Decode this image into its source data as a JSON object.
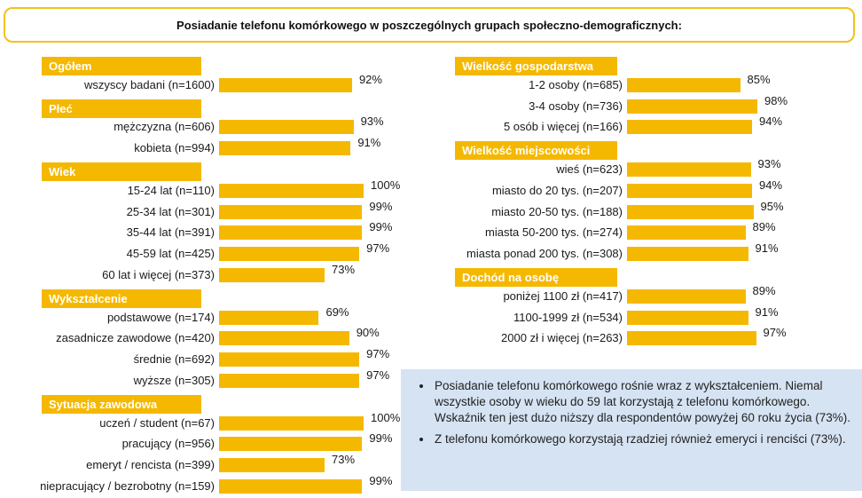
{
  "chart_data": {
    "type": "bar",
    "orientation": "horizontal",
    "title": "Posiadanie telefonu komórkowego w poszczególnych grupach społeczno-demograficznych:",
    "unit": "%",
    "xlim": [
      0,
      100
    ],
    "panels": [
      {
        "groups": [
          {
            "header": "Ogółem",
            "items": [
              {
                "label": "wszyscy badani (n=1600)",
                "value": 92,
                "value_label": "92%"
              }
            ]
          },
          {
            "header": "Płeć",
            "items": [
              {
                "label": "mężczyzna (n=606)",
                "value": 93,
                "value_label": "93%"
              },
              {
                "label": "kobieta (n=994)",
                "value": 91,
                "value_label": "91%"
              }
            ]
          },
          {
            "header": "Wiek",
            "items": [
              {
                "label": "15-24 lat (n=110)",
                "value": 100,
                "value_label": "100%"
              },
              {
                "label": "25-34 lat (n=301)",
                "value": 99,
                "value_label": "99%"
              },
              {
                "label": "35-44 lat (n=391)",
                "value": 99,
                "value_label": "99%"
              },
              {
                "label": "45-59 lat (n=425)",
                "value": 97,
                "value_label": "97%"
              },
              {
                "label": "60 lat i więcej (n=373)",
                "value": 73,
                "value_label": "73%"
              }
            ]
          },
          {
            "header": "Wykształcenie",
            "items": [
              {
                "label": "podstawowe (n=174)",
                "value": 69,
                "value_label": "69%"
              },
              {
                "label": "zasadnicze zawodowe (n=420)",
                "value": 90,
                "value_label": "90%"
              },
              {
                "label": "średnie (n=692)",
                "value": 97,
                "value_label": "97%"
              },
              {
                "label": "wyższe (n=305)",
                "value": 97,
                "value_label": "97%"
              }
            ]
          },
          {
            "header": "Sytuacja zawodowa",
            "items": [
              {
                "label": "uczeń / student (n=67)",
                "value": 100,
                "value_label": "100%"
              },
              {
                "label": "pracujący (n=956)",
                "value": 99,
                "value_label": "99%"
              },
              {
                "label": "emeryt / rencista (n=399)",
                "value": 73,
                "value_label": "73%"
              },
              {
                "label": "niepracujący / bezrobotny (n=159)",
                "value": 99,
                "value_label": "99%"
              }
            ]
          }
        ]
      },
      {
        "groups": [
          {
            "header": "Wielkość gospodarstwa",
            "items": [
              {
                "label": "1-2 osoby (n=685)",
                "value": 85,
                "value_label": "85%"
              },
              {
                "label": "3-4 osoby (n=736)",
                "value": 98,
                "value_label": "98%"
              },
              {
                "label": "5 osób i więcej (n=166)",
                "value": 94,
                "value_label": "94%"
              }
            ]
          },
          {
            "header": "Wielkość miejscowości",
            "items": [
              {
                "label": "wieś (n=623)",
                "value": 93,
                "value_label": "93%"
              },
              {
                "label": "miasto do 20 tys. (n=207)",
                "value": 94,
                "value_label": "94%"
              },
              {
                "label": "miasto 20-50 tys. (n=188)",
                "value": 95,
                "value_label": "95%"
              },
              {
                "label": "miasta 50-200 tys. (n=274)",
                "value": 89,
                "value_label": "89%"
              },
              {
                "label": "miasta ponad 200 tys. (n=308)",
                "value": 91,
                "value_label": "91%"
              }
            ]
          },
          {
            "header": "Dochód na osobę",
            "items": [
              {
                "label": "poniżej 1100 zł (n=417)",
                "value": 89,
                "value_label": "89%"
              },
              {
                "label": "1100-1999 zł (n=534)",
                "value": 91,
                "value_label": "91%"
              },
              {
                "label": "2000 zł i więcej (n=263)",
                "value": 97,
                "value_label": "97%"
              }
            ]
          }
        ]
      }
    ]
  },
  "notes": [
    "Posiadanie telefonu komórkowego rośnie wraz z wykształceniem. Niemal wszystkie osoby w wieku do 59 lat korzystają z telefonu komórkowego. Wskaźnik ten jest dużo niższy dla respondentów powyżej 60 roku życia (73%).",
    "Z telefonu komórkowego korzystają rzadziej również emeryci i renciści (73%)."
  ],
  "colors": {
    "bar": "#f5b800",
    "title_border": "#f2c21a",
    "note_bg": "#d6e3f3"
  }
}
